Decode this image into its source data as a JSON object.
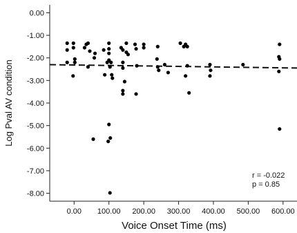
{
  "chart_data": {
    "type": "scatter",
    "title": "",
    "xlabel": "Voice Onset Time (ms)",
    "ylabel": "Log Pval AV condition",
    "xlim": [
      -70,
      640
    ],
    "ylim": [
      -8.35,
      0.35
    ],
    "x_ticks": [
      0,
      100,
      200,
      300,
      400,
      500,
      600
    ],
    "x_tick_labels": [
      "0.00",
      "100.00",
      "200.00",
      "300.00",
      "400.00",
      "500.00",
      "600.00"
    ],
    "y_ticks": [
      0,
      -1,
      -2,
      -3,
      -4,
      -5,
      -6,
      -7,
      -8
    ],
    "y_tick_labels": [
      "0.00",
      "-1.00",
      "-2.00",
      "-3.00",
      "-4.00",
      "-5.00",
      "-6.00",
      "-7.00",
      "-8.00"
    ],
    "grid": false,
    "fit_line": {
      "style": "dashed",
      "y_at_xmin": -2.3,
      "y_at_xmax": -2.45
    },
    "annotations": {
      "r": "r = -0.022",
      "p": "p = 0.85"
    },
    "points": [
      {
        "x": -20,
        "y": -1.35
      },
      {
        "x": -20,
        "y": -1.65
      },
      {
        "x": -20,
        "y": -2.2
      },
      {
        "x": -2,
        "y": -1.35
      },
      {
        "x": -2,
        "y": -1.55
      },
      {
        "x": 2,
        "y": -2.05
      },
      {
        "x": 2,
        "y": -2.2
      },
      {
        "x": -3,
        "y": -2.8
      },
      {
        "x": 30,
        "y": -1.55
      },
      {
        "x": 35,
        "y": -1.4
      },
      {
        "x": 40,
        "y": -1.35
      },
      {
        "x": 45,
        "y": -1.7
      },
      {
        "x": 40,
        "y": -2.4
      },
      {
        "x": 60,
        "y": -1.8
      },
      {
        "x": 58,
        "y": -2.0
      },
      {
        "x": 55,
        "y": -5.6
      },
      {
        "x": 85,
        "y": -1.65
      },
      {
        "x": 88,
        "y": -2.75
      },
      {
        "x": 95,
        "y": -2.2
      },
      {
        "x": 100,
        "y": -1.35
      },
      {
        "x": 100,
        "y": -1.6
      },
      {
        "x": 100,
        "y": -1.8
      },
      {
        "x": 100,
        "y": -2.1
      },
      {
        "x": 103,
        "y": -2.4
      },
      {
        "x": 106,
        "y": -2.2
      },
      {
        "x": 108,
        "y": -2.75
      },
      {
        "x": 110,
        "y": -2.9
      },
      {
        "x": 100,
        "y": -4.95
      },
      {
        "x": 98,
        "y": -5.7
      },
      {
        "x": 104,
        "y": -5.55
      },
      {
        "x": 103,
        "y": -7.98
      },
      {
        "x": 135,
        "y": -1.55
      },
      {
        "x": 140,
        "y": -1.65
      },
      {
        "x": 140,
        "y": -2.2
      },
      {
        "x": 140,
        "y": -2.45
      },
      {
        "x": 145,
        "y": -3.05
      },
      {
        "x": 140,
        "y": -3.45
      },
      {
        "x": 140,
        "y": -3.6
      },
      {
        "x": 150,
        "y": -1.35
      },
      {
        "x": 150,
        "y": -1.75
      },
      {
        "x": 155,
        "y": -1.85
      },
      {
        "x": 175,
        "y": -1.4
      },
      {
        "x": 178,
        "y": -1.6
      },
      {
        "x": 180,
        "y": -2.35
      },
      {
        "x": 178,
        "y": -3.6
      },
      {
        "x": 200,
        "y": -1.4
      },
      {
        "x": 200,
        "y": -1.55
      },
      {
        "x": 240,
        "y": -1.5
      },
      {
        "x": 238,
        "y": -2.05
      },
      {
        "x": 240,
        "y": -2.4
      },
      {
        "x": 243,
        "y": -2.55
      },
      {
        "x": 260,
        "y": -2.3
      },
      {
        "x": 270,
        "y": -2.65
      },
      {
        "x": 305,
        "y": -1.35
      },
      {
        "x": 315,
        "y": -1.5
      },
      {
        "x": 320,
        "y": -1.4
      },
      {
        "x": 325,
        "y": -1.5
      },
      {
        "x": 325,
        "y": -2.35
      },
      {
        "x": 320,
        "y": -2.8
      },
      {
        "x": 330,
        "y": -3.55
      },
      {
        "x": 390,
        "y": -2.3
      },
      {
        "x": 392,
        "y": -2.55
      },
      {
        "x": 390,
        "y": -2.8
      },
      {
        "x": 485,
        "y": -2.3
      },
      {
        "x": 590,
        "y": -1.4
      },
      {
        "x": 588,
        "y": -1.95
      },
      {
        "x": 590,
        "y": -2.05
      },
      {
        "x": 588,
        "y": -2.6
      },
      {
        "x": 590,
        "y": -5.15
      }
    ]
  }
}
